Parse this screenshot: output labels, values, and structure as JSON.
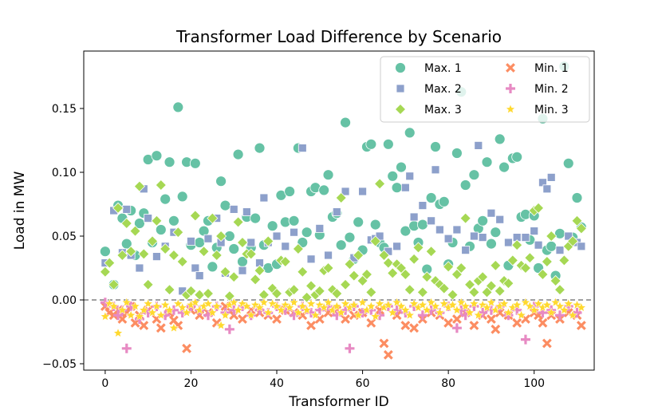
{
  "chart_data": {
    "type": "scatter",
    "title": "Transformer Load Difference by Scenario",
    "xlabel": "Transformer ID",
    "ylabel": "Load in MW",
    "xlim": [
      -5,
      114
    ],
    "ylim": [
      -0.055,
      0.195
    ],
    "xticks": [
      0,
      20,
      40,
      60,
      80,
      100
    ],
    "yticks": [
      -0.05,
      0.0,
      0.05,
      0.1,
      0.15
    ],
    "ytick_labels": [
      "−0.05",
      "0.00",
      "0.05",
      "0.10",
      "0.15"
    ],
    "reference_line": 0.0,
    "legend_position": "top-right",
    "colors": {
      "max1": "#66c2a5",
      "min1": "#fc8d62",
      "max2": "#8da0cb",
      "min2": "#e78ac3",
      "max3": "#a6d854",
      "min3": "#ffd92f",
      "refline": "#808080"
    },
    "series": [
      {
        "key": "max1",
        "name": "Max. 1",
        "marker": "circle",
        "x": [
          0,
          2,
          3,
          4,
          5,
          6,
          7,
          8,
          9,
          10,
          11,
          12,
          13,
          14,
          15,
          16,
          17,
          18,
          19,
          20,
          21,
          22,
          23,
          24,
          25,
          26,
          27,
          28,
          29,
          30,
          31,
          32,
          33,
          34,
          35,
          36,
          37,
          38,
          39,
          40,
          41,
          42,
          43,
          44,
          45,
          46,
          47,
          48,
          49,
          50,
          51,
          52,
          53,
          54,
          55,
          56,
          57,
          58,
          59,
          60,
          61,
          62,
          63,
          64,
          65,
          66,
          67,
          68,
          69,
          70,
          71,
          72,
          73,
          74,
          75,
          76,
          77,
          78,
          79,
          80,
          81,
          82,
          83,
          84,
          85,
          86,
          87,
          88,
          89,
          90,
          91,
          92,
          93,
          94,
          95,
          96,
          97,
          98,
          99,
          100,
          101,
          102,
          103,
          104,
          105,
          106,
          107,
          108,
          109,
          110,
          111
        ],
        "y": [
          0.038,
          0.012,
          0.074,
          0.064,
          0.044,
          0.07,
          0.035,
          0.06,
          0.068,
          0.11,
          0.045,
          0.113,
          0.055,
          0.079,
          0.108,
          0.062,
          0.151,
          0.081,
          0.108,
          0.043,
          0.107,
          0.045,
          0.054,
          0.062,
          0.026,
          0.041,
          0.093,
          0.074,
          0.05,
          0.04,
          0.114,
          0.03,
          0.065,
          0.041,
          0.064,
          0.119,
          0.043,
          0.025,
          0.058,
          0.028,
          0.082,
          0.061,
          0.085,
          0.062,
          0.119,
          0.045,
          0.053,
          0.085,
          0.088,
          0.051,
          0.086,
          0.098,
          0.065,
          0.068,
          0.043,
          0.139,
          0.049,
          0.032,
          0.061,
          0.039,
          0.12,
          0.122,
          0.059,
          0.045,
          0.041,
          0.122,
          0.097,
          0.088,
          0.104,
          0.054,
          0.131,
          0.058,
          0.045,
          0.059,
          0.024,
          0.08,
          0.12,
          0.075,
          0.077,
          0.028,
          0.045,
          0.115,
          0.163,
          0.09,
          0.042,
          0.098,
          0.056,
          0.062,
          0.108,
          0.044,
          0.053,
          0.126,
          0.104,
          0.027,
          0.111,
          0.112,
          0.065,
          0.067,
          0.047,
          0.066,
          0.025,
          0.142,
          0.039,
          0.042,
          0.019,
          0.052,
          0.183,
          0.107,
          0.049,
          0.08,
          0.057
        ]
      },
      {
        "key": "min1",
        "name": "Min. 1",
        "marker": "x",
        "x": [
          0,
          1,
          2,
          3,
          4,
          5,
          6,
          7,
          8,
          9,
          10,
          12,
          13,
          15,
          16,
          17,
          19,
          20,
          22,
          24,
          26,
          28,
          30,
          32,
          34,
          36,
          38,
          40,
          42,
          44,
          46,
          48,
          50,
          52,
          54,
          56,
          58,
          60,
          62,
          64,
          65,
          66,
          68,
          70,
          72,
          74,
          76,
          78,
          80,
          82,
          84,
          86,
          88,
          90,
          91,
          92,
          94,
          96,
          98,
          100,
          101,
          102,
          103,
          104,
          106,
          108,
          110,
          111
        ],
        "y": [
          -0.005,
          -0.01,
          -0.012,
          -0.008,
          -0.015,
          -0.01,
          -0.005,
          -0.018,
          -0.012,
          -0.02,
          -0.008,
          -0.015,
          -0.022,
          -0.01,
          -0.016,
          -0.02,
          -0.038,
          -0.008,
          -0.012,
          -0.01,
          -0.018,
          -0.005,
          -0.012,
          -0.015,
          -0.008,
          -0.01,
          -0.012,
          -0.015,
          -0.008,
          -0.01,
          -0.012,
          -0.02,
          -0.015,
          -0.01,
          -0.008,
          -0.015,
          -0.012,
          -0.01,
          -0.018,
          -0.008,
          -0.034,
          -0.043,
          -0.012,
          -0.02,
          -0.022,
          -0.015,
          -0.01,
          -0.012,
          -0.018,
          -0.015,
          -0.01,
          -0.02,
          -0.012,
          -0.015,
          -0.023,
          -0.01,
          -0.012,
          -0.018,
          -0.015,
          -0.01,
          -0.012,
          -0.018,
          -0.034,
          -0.012,
          -0.015,
          -0.01,
          -0.012,
          -0.02
        ]
      },
      {
        "key": "max2",
        "name": "Max. 2",
        "marker": "square",
        "x": [
          0,
          2,
          4,
          5,
          6,
          8,
          9,
          10,
          12,
          14,
          16,
          18,
          20,
          21,
          22,
          24,
          26,
          27,
          28,
          30,
          32,
          33,
          34,
          36,
          37,
          38,
          40,
          42,
          44,
          46,
          48,
          50,
          52,
          54,
          56,
          58,
          60,
          62,
          63,
          64,
          66,
          68,
          70,
          71,
          72,
          74,
          76,
          77,
          78,
          80,
          82,
          84,
          86,
          87,
          88,
          90,
          92,
          94,
          96,
          98,
          100,
          101,
          102,
          103,
          104,
          106,
          108,
          110,
          111
        ],
        "y": [
          0.029,
          0.07,
          0.037,
          0.071,
          0.035,
          0.025,
          0.087,
          0.064,
          0.034,
          0.042,
          0.053,
          0.007,
          0.046,
          0.025,
          0.019,
          0.048,
          0.064,
          0.045,
          0.021,
          0.071,
          0.023,
          0.069,
          0.045,
          0.029,
          0.08,
          0.045,
          0.05,
          0.042,
          0.053,
          0.119,
          0.032,
          0.056,
          0.035,
          0.069,
          0.085,
          0.033,
          0.085,
          0.047,
          0.048,
          0.05,
          0.038,
          0.042,
          0.088,
          0.097,
          0.065,
          0.074,
          0.062,
          0.102,
          0.055,
          0.048,
          0.055,
          0.039,
          0.05,
          0.121,
          0.049,
          0.068,
          0.063,
          0.045,
          0.049,
          0.049,
          0.054,
          0.043,
          0.092,
          0.087,
          0.096,
          0.039,
          0.05,
          0.045,
          0.042
        ]
      },
      {
        "key": "min2",
        "name": "Min. 2",
        "marker": "plus",
        "x": [
          0,
          2,
          3,
          4,
          5,
          6,
          8,
          10,
          12,
          14,
          16,
          18,
          20,
          22,
          24,
          26,
          28,
          29,
          30,
          32,
          34,
          36,
          38,
          40,
          42,
          44,
          46,
          48,
          50,
          52,
          54,
          56,
          57,
          58,
          60,
          62,
          64,
          66,
          68,
          70,
          72,
          74,
          76,
          78,
          80,
          82,
          83,
          84,
          86,
          88,
          90,
          92,
          94,
          96,
          98,
          100,
          102,
          104,
          106,
          108,
          110
        ],
        "y": [
          -0.002,
          -0.005,
          -0.012,
          -0.008,
          -0.038,
          -0.005,
          -0.015,
          -0.01,
          -0.005,
          -0.012,
          -0.008,
          -0.01,
          -0.005,
          -0.008,
          -0.012,
          -0.005,
          -0.01,
          -0.023,
          -0.008,
          -0.005,
          -0.012,
          -0.008,
          -0.01,
          -0.005,
          -0.008,
          -0.012,
          -0.005,
          -0.01,
          -0.008,
          -0.005,
          -0.012,
          -0.008,
          -0.038,
          -0.005,
          -0.01,
          -0.008,
          -0.012,
          -0.005,
          -0.008,
          -0.01,
          -0.005,
          -0.012,
          -0.008,
          -0.01,
          -0.005,
          -0.022,
          -0.008,
          -0.012,
          -0.005,
          -0.01,
          -0.008,
          -0.005,
          -0.012,
          -0.008,
          -0.031,
          -0.005,
          -0.01,
          -0.008,
          -0.012,
          -0.005,
          -0.01
        ]
      },
      {
        "key": "max3",
        "name": "Max. 3",
        "marker": "diamond",
        "x": [
          0,
          1,
          2,
          3,
          4,
          5,
          6,
          7,
          8,
          9,
          10,
          11,
          12,
          13,
          14,
          15,
          16,
          17,
          18,
          19,
          20,
          21,
          22,
          23,
          24,
          25,
          26,
          27,
          28,
          29,
          30,
          31,
          32,
          33,
          34,
          35,
          36,
          37,
          38,
          39,
          40,
          41,
          42,
          43,
          44,
          45,
          46,
          47,
          48,
          49,
          50,
          51,
          52,
          53,
          54,
          55,
          56,
          57,
          58,
          59,
          60,
          61,
          62,
          63,
          64,
          65,
          66,
          67,
          68,
          69,
          70,
          71,
          72,
          73,
          74,
          75,
          76,
          77,
          78,
          79,
          80,
          81,
          82,
          83,
          84,
          85,
          86,
          87,
          88,
          89,
          90,
          91,
          92,
          93,
          94,
          95,
          96,
          97,
          98,
          99,
          100,
          101,
          102,
          103,
          104,
          105,
          106,
          107,
          108,
          109,
          110,
          111
        ],
        "y": [
          0.022,
          0.029,
          0.012,
          0.072,
          0.035,
          0.06,
          0.038,
          0.054,
          0.089,
          0.036,
          0.012,
          0.046,
          0.062,
          0.09,
          0.04,
          0.008,
          0.035,
          0.053,
          0.03,
          0.004,
          0.007,
          0.066,
          0.004,
          0.038,
          0.005,
          0.064,
          0.035,
          0.05,
          0.022,
          0.003,
          0.018,
          0.061,
          0.045,
          0.036,
          0.036,
          0.016,
          0.023,
          0.004,
          0.046,
          0.009,
          0.005,
          0.031,
          0.03,
          0.006,
          0.008,
          0.04,
          0.022,
          0.002,
          0.011,
          0.004,
          0.007,
          0.023,
          0.025,
          0.008,
          0.005,
          0.08,
          0.012,
          0.028,
          0.019,
          0.035,
          0.015,
          0.02,
          0.006,
          0.046,
          0.091,
          0.035,
          0.029,
          0.021,
          0.028,
          0.025,
          0.02,
          0.008,
          0.032,
          0.041,
          0.006,
          0.018,
          0.038,
          0.015,
          0.012,
          0.009,
          0.026,
          0.004,
          0.02,
          0.025,
          0.064,
          0.012,
          0.006,
          0.015,
          0.018,
          0.006,
          0.011,
          0.027,
          0.007,
          0.015,
          0.013,
          0.031,
          0.043,
          0.027,
          0.025,
          0.033,
          0.07,
          0.072,
          0.02,
          0.03,
          0.05,
          0.015,
          0.008,
          0.031,
          0.042,
          0.046,
          0.062,
          0.056
        ]
      },
      {
        "key": "min3",
        "name": "Min. 3",
        "marker": "star",
        "x": [
          0,
          1,
          2,
          3,
          4,
          5,
          6,
          7,
          8,
          9,
          10,
          11,
          12,
          13,
          14,
          15,
          16,
          17,
          18,
          19,
          20,
          21,
          22,
          23,
          24,
          25,
          26,
          27,
          28,
          29,
          30,
          31,
          32,
          33,
          34,
          35,
          36,
          37,
          38,
          39,
          40,
          41,
          42,
          43,
          44,
          45,
          46,
          47,
          48,
          49,
          50,
          51,
          52,
          53,
          54,
          55,
          56,
          57,
          58,
          59,
          60,
          61,
          62,
          63,
          64,
          65,
          66,
          67,
          68,
          69,
          70,
          71,
          72,
          73,
          74,
          75,
          76,
          77,
          78,
          79,
          80,
          81,
          82,
          83,
          84,
          85,
          86,
          87,
          88,
          89,
          90,
          91,
          92,
          93,
          94,
          95,
          96,
          97,
          98,
          99,
          100,
          101,
          102,
          103,
          104,
          105,
          106,
          107,
          108,
          109,
          110,
          111
        ],
        "y": [
          -0.013,
          -0.003,
          -0.005,
          -0.026,
          -0.008,
          -0.002,
          -0.012,
          -0.005,
          -0.013,
          -0.008,
          -0.003,
          -0.01,
          -0.005,
          -0.012,
          -0.004,
          -0.008,
          -0.022,
          -0.003,
          -0.006,
          -0.01,
          -0.004,
          -0.002,
          -0.008,
          -0.005,
          -0.003,
          -0.01,
          -0.005,
          -0.02,
          -0.012,
          -0.004,
          -0.002,
          -0.008,
          -0.003,
          -0.005,
          -0.012,
          -0.004,
          -0.006,
          -0.002,
          -0.01,
          -0.003,
          -0.005,
          -0.008,
          -0.004,
          -0.006,
          -0.002,
          -0.01,
          -0.005,
          -0.008,
          -0.003,
          -0.012,
          -0.004,
          -0.006,
          -0.002,
          -0.008,
          -0.005,
          -0.01,
          -0.003,
          -0.006,
          -0.004,
          -0.012,
          -0.002,
          -0.008,
          -0.005,
          -0.013,
          -0.003,
          -0.006,
          -0.004,
          -0.01,
          -0.002,
          -0.005,
          -0.008,
          -0.012,
          -0.003,
          -0.006,
          -0.004,
          -0.008,
          -0.002,
          -0.005,
          -0.01,
          -0.003,
          -0.006,
          -0.004,
          -0.008,
          -0.002,
          -0.005,
          -0.01,
          -0.003,
          -0.012,
          -0.004,
          -0.006,
          -0.002,
          -0.008,
          -0.005,
          -0.003,
          -0.01,
          -0.006,
          -0.004,
          -0.012,
          -0.002,
          -0.005,
          -0.008,
          -0.003,
          -0.006,
          -0.004,
          -0.01,
          -0.002,
          -0.005,
          -0.008,
          -0.003,
          -0.012,
          -0.004,
          -0.006
        ]
      }
    ]
  }
}
